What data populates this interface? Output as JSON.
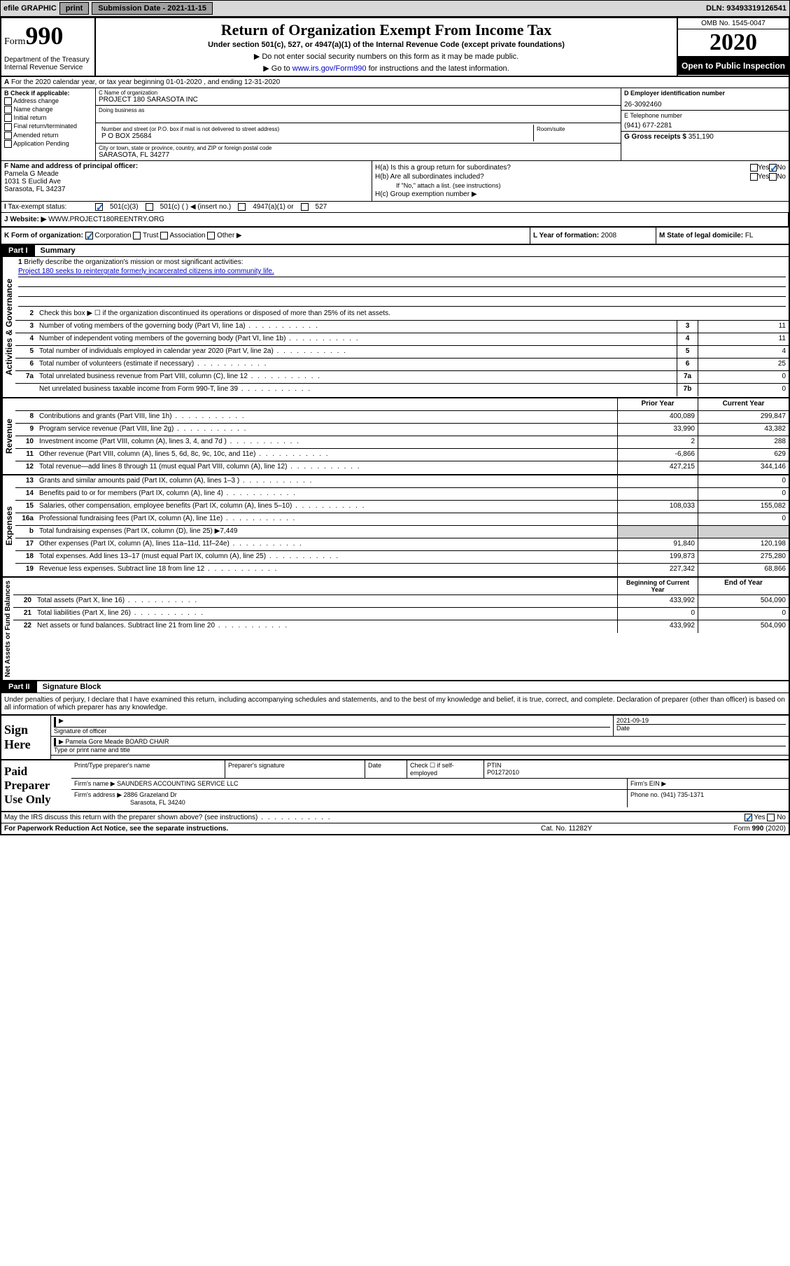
{
  "topbar": {
    "efile": "efile GRAPHIC",
    "print": "print",
    "subdate_lbl": "Submission Date - ",
    "subdate": "2021-11-15",
    "dln_lbl": "DLN: ",
    "dln": "93493319126541"
  },
  "header": {
    "form_label": "Form",
    "form_num": "990",
    "dept": "Department of the Treasury\nInternal Revenue Service",
    "title": "Return of Organization Exempt From Income Tax",
    "sub1": "Under section 501(c), 527, or 4947(a)(1) of the Internal Revenue Code (except private foundations)",
    "sub2": "Do not enter social security numbers on this form as it may be made public.",
    "sub3_pre": "Go to ",
    "sub3_link": "www.irs.gov/Form990",
    "sub3_post": " for instructions and the latest information.",
    "omb": "OMB No. 1545-0047",
    "year": "2020",
    "open": "Open to Public Inspection"
  },
  "lineA": "For the 2020 calendar year, or tax year beginning 01-01-2020    , and ending 12-31-2020",
  "colB": {
    "title": "B Check if applicable:",
    "opts": [
      "Address change",
      "Name change",
      "Initial return",
      "Final return/terminated",
      "Amended return",
      "Application Pending"
    ]
  },
  "colC": {
    "name_lbl": "C Name of organization",
    "name": "PROJECT 180 SARASOTA INC",
    "dba_lbl": "Doing business as",
    "addr_lbl": "Number and street (or P.O. box if mail is not delivered to street address)",
    "room_lbl": "Room/suite",
    "addr": "P O BOX 25684",
    "city_lbl": "City or town, state or province, country, and ZIP or foreign postal code",
    "city": "SARASOTA, FL  34277"
  },
  "colD": {
    "ein_lbl": "D Employer identification number",
    "ein": "26-3092460",
    "tel_lbl": "E Telephone number",
    "tel": "(941) 677-2281",
    "gross_lbl": "G Gross receipts $ ",
    "gross": "351,190"
  },
  "officer": {
    "lbl": "F  Name and address of principal officer:",
    "name": "Pamela G Meade",
    "addr1": "1031 S Euclid Ave",
    "addr2": "Sarasota, FL  34237"
  },
  "colH": {
    "ha": "H(a)  Is this a group return for subordinates?",
    "hb": "H(b)  Are all subordinates included?",
    "hnote": "If \"No,\" attach a list. (see instructions)",
    "hc": "H(c)  Group exemption number ▶",
    "yes": "Yes",
    "no": "No"
  },
  "taxstatus": {
    "lbl": "Tax-exempt status:",
    "o1": "501(c)(3)",
    "o2": "501(c) (   ) ◀ (insert no.)",
    "o3": "4947(a)(1) or",
    "o4": "527"
  },
  "website": {
    "lbl": "J   Website: ▶",
    "val": "WWW.PROJECT180REENTRY.ORG"
  },
  "lineK": {
    "k": "K Form of organization:",
    "corp": "Corporation",
    "trust": "Trust",
    "assoc": "Association",
    "other": "Other ▶",
    "l_lbl": "L Year of formation: ",
    "l_val": "2008",
    "m_lbl": "M State of legal domicile: ",
    "m_val": "FL"
  },
  "part1": {
    "title": "Part I",
    "label": "Summary"
  },
  "summary": {
    "q1": "Briefly describe the organization's mission or most significant activities:",
    "mission": "Project 180 seeks to reintergrate formerly incarcerated citizens into community life.",
    "q2": "Check this box ▶ ☐  if the organization discontinued its operations or disposed of more than 25% of its net assets.",
    "lines": [
      {
        "n": "3",
        "t": "Number of voting members of the governing body (Part VI, line 1a)",
        "box": "3",
        "v": "11"
      },
      {
        "n": "4",
        "t": "Number of independent voting members of the governing body (Part VI, line 1b)",
        "box": "4",
        "v": "11"
      },
      {
        "n": "5",
        "t": "Total number of individuals employed in calendar year 2020 (Part V, line 2a)",
        "box": "5",
        "v": "4"
      },
      {
        "n": "6",
        "t": "Total number of volunteers (estimate if necessary)",
        "box": "6",
        "v": "25"
      },
      {
        "n": "7a",
        "t": "Total unrelated business revenue from Part VIII, column (C), line 12",
        "box": "7a",
        "v": "0"
      },
      {
        "n": "",
        "t": "Net unrelated business taxable income from Form 990-T, line 39",
        "box": "7b",
        "v": "0"
      }
    ],
    "hdr_prior": "Prior Year",
    "hdr_current": "Current Year",
    "revenue": [
      {
        "n": "8",
        "t": "Contributions and grants (Part VIII, line 1h)",
        "p": "400,089",
        "c": "299,847"
      },
      {
        "n": "9",
        "t": "Program service revenue (Part VIII, line 2g)",
        "p": "33,990",
        "c": "43,382"
      },
      {
        "n": "10",
        "t": "Investment income (Part VIII, column (A), lines 3, 4, and 7d )",
        "p": "2",
        "c": "288"
      },
      {
        "n": "11",
        "t": "Other revenue (Part VIII, column (A), lines 5, 6d, 8c, 9c, 10c, and 11e)",
        "p": "-6,866",
        "c": "629"
      },
      {
        "n": "12",
        "t": "Total revenue—add lines 8 through 11 (must equal Part VIII, column (A), line 12)",
        "p": "427,215",
        "c": "344,146"
      }
    ],
    "expenses": [
      {
        "n": "13",
        "t": "Grants and similar amounts paid (Part IX, column (A), lines 1–3 )",
        "p": "",
        "c": "0"
      },
      {
        "n": "14",
        "t": "Benefits paid to or for members (Part IX, column (A), line 4)",
        "p": "",
        "c": "0"
      },
      {
        "n": "15",
        "t": "Salaries, other compensation, employee benefits (Part IX, column (A), lines 5–10)",
        "p": "108,033",
        "c": "155,082"
      },
      {
        "n": "16a",
        "t": "Professional fundraising fees (Part IX, column (A), line 11e)",
        "p": "",
        "c": "0"
      },
      {
        "n": "b",
        "t": "Total fundraising expenses (Part IX, column (D), line 25) ▶7,449",
        "p": "",
        "c": "",
        "grey": true
      },
      {
        "n": "17",
        "t": "Other expenses (Part IX, column (A), lines 11a–11d, 11f–24e)",
        "p": "91,840",
        "c": "120,198"
      },
      {
        "n": "18",
        "t": "Total expenses. Add lines 13–17 (must equal Part IX, column (A), line 25)",
        "p": "199,873",
        "c": "275,280"
      },
      {
        "n": "19",
        "t": "Revenue less expenses. Subtract line 18 from line 12",
        "p": "227,342",
        "c": "68,866"
      }
    ],
    "hdr_begin": "Beginning of Current Year",
    "hdr_end": "End of Year",
    "netassets": [
      {
        "n": "20",
        "t": "Total assets (Part X, line 16)",
        "p": "433,992",
        "c": "504,090"
      },
      {
        "n": "21",
        "t": "Total liabilities (Part X, line 26)",
        "p": "0",
        "c": "0"
      },
      {
        "n": "22",
        "t": "Net assets or fund balances. Subtract line 21 from line 20",
        "p": "433,992",
        "c": "504,090"
      }
    ]
  },
  "part2": {
    "title": "Part II",
    "label": "Signature Block"
  },
  "sigtext": "Under penalties of perjury, I declare that I have examined this return, including accompanying schedules and statements, and to the best of my knowledge and belief, it is true, correct, and complete. Declaration of preparer (other than officer) is based on all information of which preparer has any knowledge.",
  "sign": {
    "lbl": "Sign Here",
    "sig": "Signature of officer",
    "date_lbl": "Date",
    "date": "2021-09-19",
    "name": "Pamela Gore Meade  BOARD CHAIR",
    "name_lbl": "Type or print name and title"
  },
  "prep": {
    "lbl": "Paid Preparer Use Only",
    "r1c1": "Print/Type preparer's name",
    "r1c2": "Preparer's signature",
    "r1c3": "Date",
    "r1c4": "Check ☐ if self-employed",
    "r1c5_lbl": "PTIN",
    "r1c5": "P01272010",
    "r2c1": "Firm's name    ▶",
    "r2c1v": "SAUNDERS ACCOUNTING SERVICE LLC",
    "r2c2": "Firm's EIN ▶",
    "r3c1": "Firm's address ▶",
    "r3c1v": "2886 Grazeland Dr",
    "r3c1v2": "Sarasota, FL  34240",
    "r3c2": "Phone no. (941) 735-1371"
  },
  "discuss": "May the IRS discuss this return with the preparer shown above? (see instructions)",
  "footer": {
    "pra": "For Paperwork Reduction Act Notice, see the separate instructions.",
    "cat": "Cat. No. 11282Y",
    "form": "Form 990 (2020)"
  },
  "colors": {
    "link": "#0000cc",
    "check": "#0066cc",
    "grey_bg": "#d8d8d8",
    "cell_grey": "#d0d0d0"
  }
}
